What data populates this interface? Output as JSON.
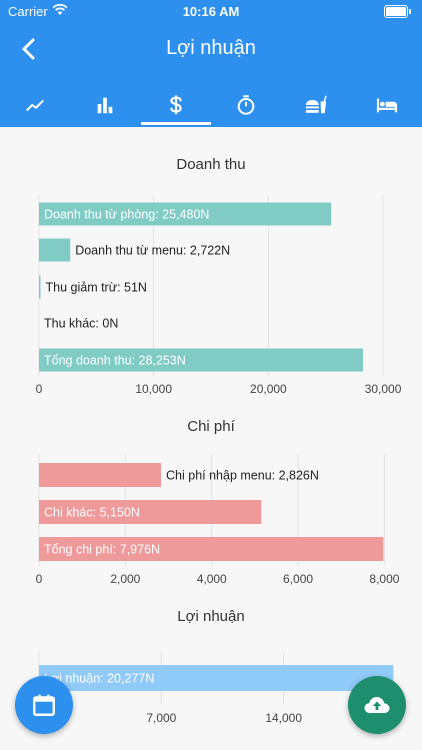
{
  "status_bar": {
    "carrier": "Carrier",
    "time": "10:16 AM"
  },
  "header": {
    "title": "Lợi nhuận"
  },
  "tabs": [
    {
      "icon": "trending-up-icon"
    },
    {
      "icon": "bar-chart-icon"
    },
    {
      "icon": "dollar-icon",
      "active": true
    },
    {
      "icon": "timer-icon"
    },
    {
      "icon": "fastfood-icon"
    },
    {
      "icon": "bed-icon"
    }
  ],
  "colors": {
    "header": "#2d8fee",
    "revenue": "#80cbc4",
    "cost": "#ef9a9a",
    "profit": "#90caf9",
    "fab_calendar": "#2d8fee",
    "fab_cloud": "#1d8f6e"
  },
  "chart_data": [
    {
      "type": "bar",
      "orientation": "horizontal",
      "title": "Doanh thu",
      "categories": [
        "Doanh thu từ phòng: 25,480N",
        "Doanh thu từ menu: 2,722N",
        "Thu giảm trừ: 51N",
        "Thu khác: 0N",
        "Tổng doanh thu: 28,253N"
      ],
      "values": [
        25480,
        2722,
        51,
        0,
        28253
      ],
      "xlim": [
        0,
        32000
      ],
      "ticks": [
        "0",
        "10,000",
        "20,000",
        "30,000"
      ],
      "tick_values": [
        0,
        10000,
        20000,
        30000
      ],
      "grid": true
    },
    {
      "type": "bar",
      "orientation": "horizontal",
      "title": "Chi phí",
      "categories": [
        "Chi phí nhập menu: 2,826N",
        "Chi khác: 5,150N",
        "Tổng chi phí: 7,976N"
      ],
      "values": [
        2826,
        5150,
        7976
      ],
      "xlim": [
        0,
        8500
      ],
      "ticks": [
        "0",
        "2,000",
        "4,000",
        "6,000",
        "8,000"
      ],
      "tick_values": [
        0,
        2000,
        4000,
        6000,
        8000
      ],
      "grid": true
    },
    {
      "type": "bar",
      "orientation": "horizontal",
      "title": "Lợi nhuận",
      "categories": [
        "Lợi nhuận: 20,277N"
      ],
      "values": [
        20277
      ],
      "xlim": [
        0,
        21000
      ],
      "ticks": [
        "0",
        "7,000",
        "14,000"
      ],
      "tick_values": [
        0,
        7000,
        14000
      ],
      "grid": true
    }
  ]
}
